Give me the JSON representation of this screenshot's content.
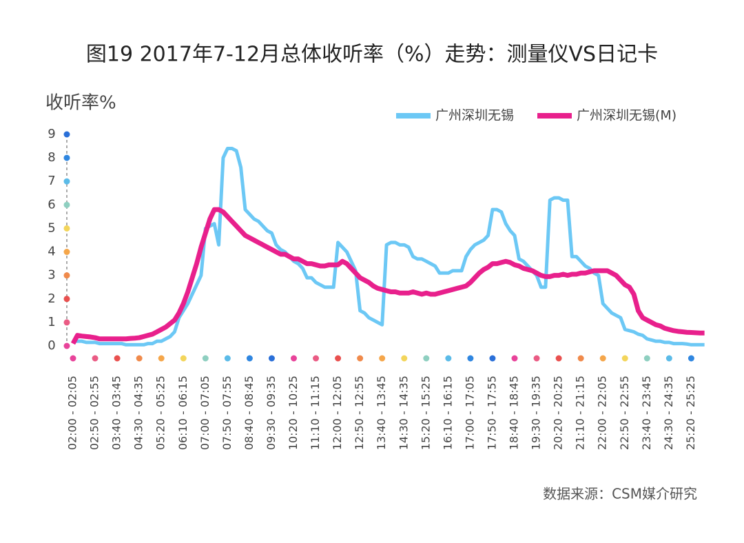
{
  "chart_data": {
    "type": "line",
    "title": "图19 2017年7-12月总体收听率（%）走势：测量仪VS日记卡",
    "y_label": "收听率%",
    "source": "数据来源：CSM媒介研究",
    "categories": [
      "02:00 - 02:05",
      null,
      null,
      null,
      null,
      "02:50 - 02:55",
      null,
      null,
      null,
      null,
      "03:40 - 03:45",
      null,
      null,
      null,
      null,
      "04:30 - 04:35",
      null,
      null,
      null,
      null,
      "05:20 - 05:25",
      null,
      null,
      null,
      null,
      "06:10 - 06:15",
      null,
      null,
      null,
      null,
      "07:00 - 07:05",
      null,
      null,
      null,
      null,
      "07:50 - 07:55",
      null,
      null,
      null,
      null,
      "08:40 - 08:45",
      null,
      null,
      null,
      null,
      "09:30 - 09:35",
      null,
      null,
      null,
      null,
      "10:20 - 10:25",
      null,
      null,
      null,
      null,
      "11:10 - 11:15",
      null,
      null,
      null,
      null,
      "12:00 - 12:05",
      null,
      null,
      null,
      null,
      "12:50 - 12:55",
      null,
      null,
      null,
      null,
      "13:40 - 13:45",
      null,
      null,
      null,
      null,
      "14:30 - 14:35",
      null,
      null,
      null,
      null,
      "15:20 - 15:25",
      null,
      null,
      null,
      null,
      "16:10 - 16:15",
      null,
      null,
      null,
      null,
      "17:00 - 17:05",
      null,
      null,
      null,
      null,
      "17:50 - 17:55",
      null,
      null,
      null,
      null,
      "18:40 - 18:45",
      null,
      null,
      null,
      null,
      "19:30 - 19:35",
      null,
      null,
      null,
      null,
      "20:20 - 20:25",
      null,
      null,
      null,
      null,
      "21:10 - 21:15",
      null,
      null,
      null,
      null,
      "22:00 - 22:05",
      null,
      null,
      null,
      null,
      "22:50 - 22:55",
      null,
      null,
      null,
      null,
      "23:40 - 23:45",
      null,
      null,
      null,
      null,
      "24:30 - 24:35",
      null,
      null,
      null,
      null,
      "25:20 - 25:25",
      null,
      null,
      null
    ],
    "series": [
      {
        "name": "广州深圳无锡",
        "color": "#6cc8f5",
        "values": [
          0.2,
          0.2,
          0.2,
          0.15,
          0.15,
          0.15,
          0.1,
          0.1,
          0.1,
          0.1,
          0.1,
          0.1,
          0.05,
          0.05,
          0.05,
          0.05,
          0.05,
          0.1,
          0.1,
          0.2,
          0.2,
          0.3,
          0.4,
          0.6,
          1.2,
          1.5,
          1.8,
          2.2,
          2.6,
          3.0,
          5.0,
          5.1,
          5.2,
          4.3,
          8.0,
          8.4,
          8.4,
          8.3,
          7.6,
          5.8,
          5.6,
          5.4,
          5.3,
          5.1,
          4.9,
          4.8,
          4.3,
          4.1,
          4.0,
          3.8,
          3.6,
          3.5,
          3.3,
          2.9,
          2.9,
          2.7,
          2.6,
          2.5,
          2.5,
          2.5,
          4.4,
          4.2,
          4.0,
          3.6,
          3.2,
          1.5,
          1.4,
          1.2,
          1.1,
          1.0,
          0.9,
          4.3,
          4.4,
          4.4,
          4.3,
          4.3,
          4.2,
          3.8,
          3.7,
          3.7,
          3.6,
          3.5,
          3.4,
          3.1,
          3.1,
          3.1,
          3.2,
          3.2,
          3.2,
          3.8,
          4.1,
          4.3,
          4.4,
          4.5,
          4.7,
          5.8,
          5.8,
          5.7,
          5.2,
          4.9,
          4.7,
          3.7,
          3.6,
          3.4,
          3.2,
          3.0,
          2.5,
          2.5,
          6.2,
          6.3,
          6.3,
          6.2,
          6.2,
          3.8,
          3.8,
          3.6,
          3.4,
          3.3,
          3.1,
          3.0,
          1.8,
          1.6,
          1.4,
          1.3,
          1.2,
          0.7,
          0.65,
          0.6,
          0.5,
          0.45,
          0.3,
          0.25,
          0.2,
          0.2,
          0.15,
          0.15,
          0.1,
          0.1,
          0.1,
          0.08,
          0.05,
          0.05,
          0.05,
          0.05
        ]
      },
      {
        "name": "广州深圳无锡(M)",
        "color": "#e8208c",
        "values": [
          0.1,
          0.45,
          0.42,
          0.4,
          0.38,
          0.35,
          0.3,
          0.3,
          0.3,
          0.3,
          0.3,
          0.3,
          0.3,
          0.32,
          0.33,
          0.35,
          0.4,
          0.45,
          0.5,
          0.6,
          0.7,
          0.8,
          0.95,
          1.1,
          1.4,
          1.8,
          2.3,
          2.9,
          3.5,
          4.2,
          4.8,
          5.4,
          5.8,
          5.8,
          5.7,
          5.5,
          5.3,
          5.1,
          4.9,
          4.7,
          4.6,
          4.5,
          4.4,
          4.3,
          4.2,
          4.1,
          4.0,
          3.9,
          3.9,
          3.8,
          3.7,
          3.7,
          3.6,
          3.5,
          3.5,
          3.45,
          3.4,
          3.4,
          3.45,
          3.45,
          3.45,
          3.6,
          3.5,
          3.3,
          3.1,
          2.9,
          2.8,
          2.7,
          2.55,
          2.45,
          2.4,
          2.35,
          2.3,
          2.3,
          2.25,
          2.25,
          2.25,
          2.3,
          2.25,
          2.2,
          2.25,
          2.2,
          2.2,
          2.25,
          2.3,
          2.35,
          2.4,
          2.45,
          2.5,
          2.55,
          2.7,
          2.9,
          3.1,
          3.25,
          3.35,
          3.5,
          3.5,
          3.55,
          3.6,
          3.55,
          3.45,
          3.4,
          3.3,
          3.25,
          3.2,
          3.1,
          3.0,
          2.95,
          2.95,
          3.0,
          3.0,
          3.05,
          3.0,
          3.05,
          3.05,
          3.1,
          3.1,
          3.15,
          3.2,
          3.2,
          3.2,
          3.2,
          3.1,
          3.0,
          2.8,
          2.6,
          2.5,
          2.2,
          1.5,
          1.2,
          1.1,
          1.0,
          0.9,
          0.85,
          0.75,
          0.7,
          0.65,
          0.62,
          0.6,
          0.58,
          0.57,
          0.56,
          0.55,
          0.55
        ]
      }
    ],
    "ylim": [
      0,
      9
    ],
    "yticks": [
      0,
      1,
      2,
      3,
      4,
      5,
      6,
      7,
      8,
      9
    ]
  }
}
